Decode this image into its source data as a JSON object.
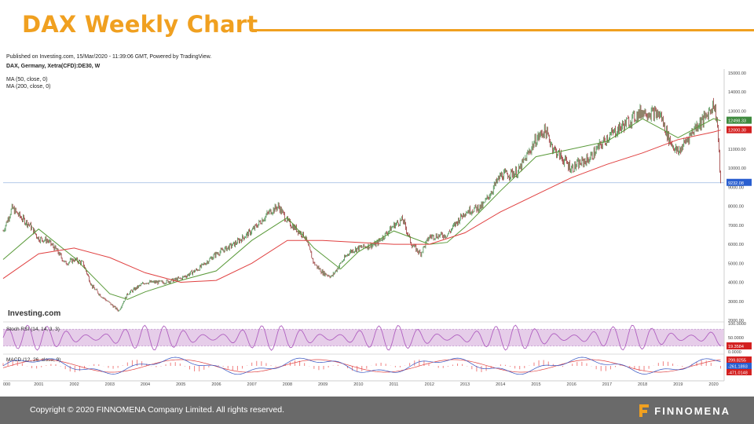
{
  "slide": {
    "title": "DAX Weekly Chart",
    "footer": "Copyright © 2020 FINNOMENA Company Limited. All rights reserved.",
    "brand": "FINNOMENA",
    "accent_color": "#f0a020",
    "footer_color": "#6a6a6a"
  },
  "chart_data": {
    "type": "line",
    "published": "Published on Investing.com, 15/Mar/2020 - 11:39:06 GMT, Powered by TradingView.",
    "symbol": "DAX, Germany, Xetra(CFD):DE30, W",
    "indicators": [
      "MA (50, close, 0)",
      "MA (200, close, 0)"
    ],
    "watermark": "Investing.com",
    "x_ticks": [
      "000",
      "2001",
      "2002",
      "2003",
      "2004",
      "2005",
      "2006",
      "2007",
      "2008",
      "2009",
      "2010",
      "2011",
      "2012",
      "2013",
      "2014",
      "2015",
      "2016",
      "2017",
      "2018",
      "2019",
      "2020"
    ],
    "y_ticks": [
      "15000.00",
      "14000.00",
      "13000.00",
      "12000.00",
      "11000.00",
      "10000.00",
      "9000.00",
      "8000.00",
      "7000.00",
      "6000.00",
      "5000.00",
      "4000.00",
      "3000.00",
      "2000.00"
    ],
    "ylim": [
      2000,
      15000
    ],
    "price_labels": {
      "ma50": "12498.33",
      "ma200": "12000.30",
      "last": "9232.08"
    },
    "colors": {
      "price_up": "#2e7d32",
      "price_down": "#8b1a1a",
      "ma50": "#5a9a3a",
      "ma200": "#e04040",
      "stoch": "#b060c0",
      "macd": "#3050c0",
      "signal": "#e04040",
      "hline": "#9ab8e0"
    },
    "series": [
      {
        "name": "DAX",
        "x": [
          2000,
          2000.25,
          2000.5,
          2000.75,
          2001,
          2001.25,
          2001.5,
          2001.75,
          2002,
          2002.25,
          2002.5,
          2002.75,
          2003,
          2003.25,
          2003.5,
          2003.75,
          2004,
          2004.5,
          2005,
          2005.5,
          2006,
          2006.5,
          2007,
          2007.25,
          2007.5,
          2007.75,
          2008,
          2008.25,
          2008.5,
          2008.75,
          2009,
          2009.25,
          2009.5,
          2009.75,
          2010,
          2010.5,
          2011,
          2011.25,
          2011.5,
          2011.75,
          2012,
          2012.5,
          2013,
          2013.5,
          2014,
          2014.5,
          2015,
          2015.25,
          2015.5,
          2015.75,
          2016,
          2016.5,
          2017,
          2017.5,
          2018,
          2018.5,
          2018.75,
          2019,
          2019.5,
          2019.75,
          2020,
          2020.1,
          2020.2
        ],
        "values": [
          6700,
          7900,
          7400,
          7000,
          6300,
          6200,
          5700,
          5000,
          5200,
          5000,
          3800,
          3300,
          2900,
          2500,
          3400,
          3700,
          4000,
          4000,
          4200,
          4700,
          5500,
          6000,
          6700,
          7200,
          7700,
          8000,
          7200,
          6800,
          6400,
          5000,
          4500,
          4300,
          5000,
          5600,
          5800,
          6000,
          7000,
          7300,
          6000,
          5500,
          6400,
          6500,
          7700,
          8000,
          9600,
          9800,
          11500,
          12000,
          11000,
          10500,
          10000,
          10500,
          11600,
          12300,
          13000,
          12800,
          11500,
          10800,
          12200,
          12600,
          13400,
          12500,
          9232
        ]
      },
      {
        "name": "MA (50, close, 0)",
        "x": [
          2000,
          2001,
          2002,
          2003,
          2003.5,
          2004,
          2005,
          2006,
          2007,
          2008,
          2008.75,
          2009.5,
          2010,
          2011,
          2012,
          2012.5,
          2013,
          2014,
          2015,
          2016,
          2017,
          2018,
          2019,
          2020,
          2020.2
        ],
        "values": [
          5200,
          6800,
          5300,
          3400,
          3100,
          3500,
          4100,
          4600,
          6200,
          7400,
          5800,
          4700,
          5600,
          6700,
          6000,
          6100,
          6900,
          8800,
          10600,
          11000,
          11400,
          12600,
          11600,
          12600,
          12498
        ]
      },
      {
        "name": "MA (200, close, 0)",
        "x": [
          2000,
          2001,
          2002,
          2003,
          2004,
          2005,
          2006,
          2007,
          2008,
          2009,
          2010,
          2011,
          2012,
          2013,
          2014,
          2015,
          2016,
          2017,
          2018,
          2019,
          2020,
          2020.2
        ],
        "values": [
          4200,
          5500,
          5800,
          5300,
          4500,
          4000,
          4100,
          5000,
          6200,
          6200,
          6100,
          6000,
          6000,
          6600,
          7700,
          8600,
          9500,
          10200,
          10800,
          11500,
          11900,
          12000
        ]
      }
    ],
    "oscillators": [
      {
        "name": "Stoch RSI (14, 14, 3, 3)",
        "ylim": [
          0,
          100
        ],
        "ticks": [
          "100.0000",
          "50.0000",
          "0.0000"
        ],
        "last": "19.3584"
      },
      {
        "name": "MACD (12, 26, close, 9)",
        "values": [
          "299.8255",
          "-261.1893",
          "-471.0148"
        ]
      }
    ]
  }
}
